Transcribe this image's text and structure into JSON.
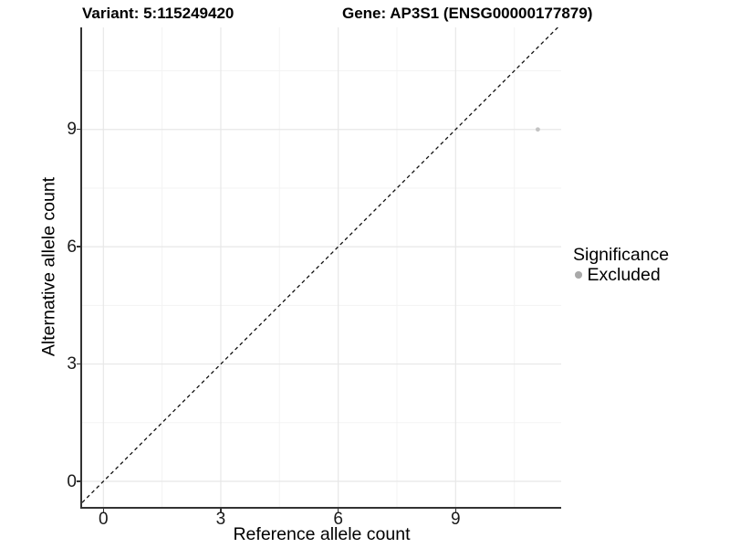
{
  "header": {
    "variant_title": "Variant: 5:115249420",
    "gene_title": "Gene: AP3S1 (ENSG00000177879)"
  },
  "chart_data": {
    "type": "scatter",
    "xlabel": "Reference allele count",
    "ylabel": "Alternative allele count",
    "xlim": [
      -0.543,
      11.697
    ],
    "ylim": [
      -0.654,
      11.61
    ],
    "x_major_ticks": [
      0,
      3,
      6,
      9
    ],
    "y_major_ticks": [
      0,
      3,
      6,
      9
    ],
    "x_minor_ticks": [
      1.5,
      4.5,
      7.5,
      10.5
    ],
    "y_minor_ticks": [
      1.5,
      4.5,
      7.5,
      10.5
    ],
    "grid": "major+minor",
    "identity_line": {
      "slope": 1,
      "intercept": 0,
      "style": "dashed",
      "color": "#111111"
    },
    "points": [
      {
        "x": 11.1,
        "y": 9,
        "significance": "Excluded",
        "color": "#c3c3c3",
        "radius": 2.4
      }
    ],
    "legend": {
      "title": "Significance",
      "position": "right",
      "items": [
        {
          "label": "Excluded",
          "color": "#a9a9a9"
        }
      ]
    },
    "colors": {
      "grid_major": "#e7e7e7",
      "grid_minor": "#f3f3f3",
      "axis": "#333333",
      "text": "#000000"
    }
  }
}
